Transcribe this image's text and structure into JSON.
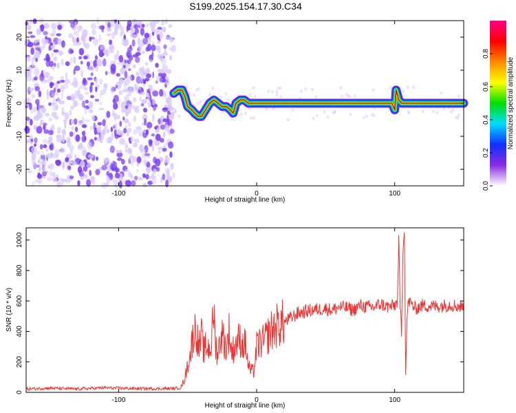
{
  "title": "S199.2025.154.17.30.C34",
  "colors": {
    "spectrogram_low": "#d8c8ff",
    "spectrogram_mid": "#7a3cf0",
    "snr_line": "#ee3333",
    "axis": "#000000"
  },
  "chart_data": [
    {
      "type": "heatmap",
      "name": "spectrogram",
      "xlabel": "Height of straight line (km)",
      "ylabel": "Frequency (Hz)",
      "xlim": [
        -167,
        150
      ],
      "ylim": [
        -25,
        25
      ],
      "xticks": [
        -100,
        0,
        100
      ],
      "xtick_labels": [
        "-100",
        "0",
        "100"
      ],
      "yticks": [
        -20,
        -10,
        0,
        10,
        20
      ],
      "ytick_labels": [
        "-20",
        "-10",
        "0",
        "10",
        "20"
      ],
      "noise_region_x": [
        -167,
        -60
      ],
      "signal_track": {
        "x": [
          -60,
          -57,
          -54,
          -52,
          -50,
          -47,
          -45,
          -42,
          -40,
          -37,
          -34,
          -31,
          -28,
          -25,
          -22,
          -19,
          -17,
          -15,
          -12,
          -9,
          -6,
          -3,
          0,
          10,
          30,
          60,
          68,
          75,
          85,
          90,
          95,
          98,
          100,
          101,
          103,
          105,
          110,
          130,
          150
        ],
        "y": [
          3,
          4,
          4,
          2,
          -1,
          -2,
          -3,
          -4,
          -4,
          -2,
          0,
          1,
          0,
          -1,
          -1,
          -2,
          -3,
          0,
          1,
          1,
          0,
          0,
          0,
          0,
          0,
          0,
          0,
          0,
          0,
          0,
          0,
          0,
          -2,
          4,
          1,
          0,
          0,
          0,
          0
        ]
      },
      "colorbar": {
        "label": "Normalized spectral amplitude",
        "ticks": [
          0.0,
          0.2,
          0.4,
          0.6,
          0.8
        ],
        "tick_labels": [
          "0.0",
          "0.2",
          "0.4",
          "0.6",
          "0.8"
        ],
        "range": [
          0,
          1
        ],
        "palette": [
          "#ffffff",
          "#8a2be2",
          "#1030ff",
          "#00ddff",
          "#00dd00",
          "#ffff00",
          "#ff8800",
          "#ff0000",
          "#ff0088"
        ]
      }
    },
    {
      "type": "line",
      "name": "snr",
      "xlabel": "Height of straight line (km)",
      "ylabel": "SNR (10 * v/v)",
      "xlim": [
        -167,
        150
      ],
      "ylim": [
        0,
        1080
      ],
      "xticks": [
        -100,
        0,
        100
      ],
      "xtick_labels": [
        "-100",
        "0",
        "100"
      ],
      "yticks": [
        0,
        200,
        400,
        600,
        800,
        1000
      ],
      "ytick_labels": [
        "0",
        "200",
        "400",
        "600",
        "800",
        "1000"
      ],
      "series": [
        {
          "name": "SNR",
          "x": [
            -167,
            -150,
            -130,
            -110,
            -90,
            -70,
            -60,
            -55,
            -52,
            -50,
            -48,
            -46,
            -44,
            -42,
            -41,
            -40,
            -38,
            -37,
            -35,
            -33,
            -31,
            -30,
            -28,
            -26,
            -24,
            -22,
            -20,
            -18,
            -16,
            -14,
            -12,
            -10,
            -8,
            -6,
            -4,
            -2,
            0,
            3,
            5,
            10,
            15,
            20,
            25,
            30,
            35,
            40,
            45,
            50,
            55,
            60,
            65,
            70,
            75,
            80,
            85,
            90,
            95,
            100,
            102,
            103,
            104,
            105,
            106,
            107,
            108,
            109,
            110,
            115,
            120,
            130,
            140,
            150
          ],
          "y": [
            22,
            28,
            22,
            30,
            25,
            24,
            25,
            30,
            90,
            180,
            250,
            380,
            420,
            300,
            310,
            370,
            260,
            300,
            290,
            300,
            550,
            320,
            250,
            380,
            360,
            280,
            400,
            260,
            300,
            340,
            350,
            310,
            320,
            170,
            140,
            140,
            300,
            330,
            330,
            400,
            440,
            460,
            490,
            520,
            530,
            540,
            545,
            550,
            540,
            560,
            555,
            540,
            570,
            560,
            560,
            580,
            560,
            570,
            600,
            990,
            560,
            400,
            950,
            1080,
            120,
            500,
            600,
            550,
            570,
            565,
            575,
            560
          ]
        }
      ]
    }
  ]
}
